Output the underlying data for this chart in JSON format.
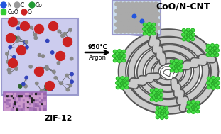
{
  "title": "CoO/N-CNT",
  "zif_label": "ZIF-12",
  "arrow_text1": "950°C",
  "arrow_text2": "Argon",
  "bg_color": "#ffffff",
  "zif_box_color": "#9999cc",
  "zif_bg_color": "#ccccee",
  "cnt_insert_color": "#9999cc",
  "cnt_insert_bg": "#ccddee",
  "n_color": "#2255dd",
  "c_color": "#999999",
  "co_color": "#229933",
  "coo_color": "#33cc33",
  "o_color": "#cc2222",
  "atom_gray": "#888888",
  "atom_blue": "#3344bb",
  "atom_green": "#336633",
  "bond_color": "#555555",
  "tube_dark": "#555555",
  "tube_light": "#cccccc",
  "purple_box_color": "#9966bb",
  "purple_bg": "#cc99cc"
}
